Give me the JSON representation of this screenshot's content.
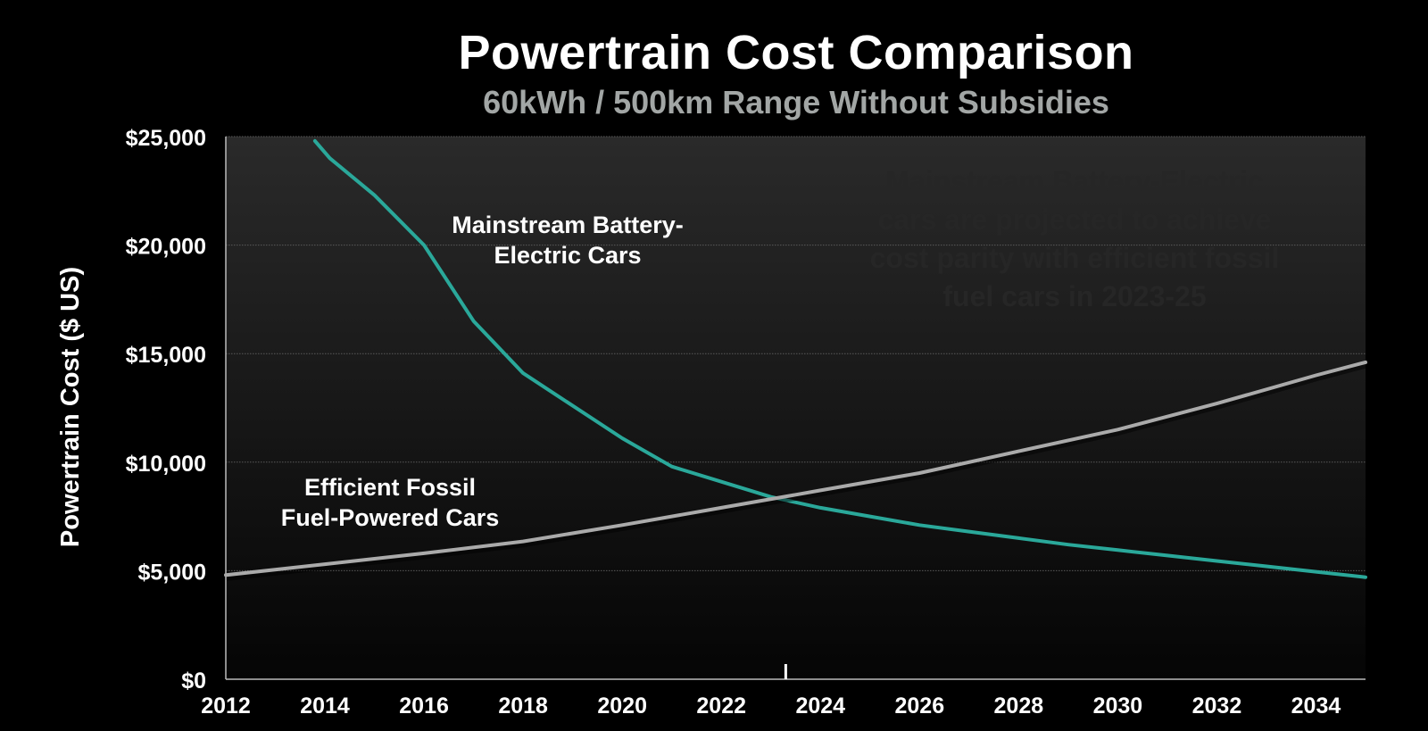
{
  "chart_data": {
    "type": "line",
    "title": "Powertrain Cost Comparison",
    "subtitle": "60kWh / 500km Range Without Subsidies",
    "xlabel": "",
    "ylabel": "Powertrain Cost ($ US)",
    "xlim": [
      2012,
      2035
    ],
    "ylim": [
      0,
      25000
    ],
    "x_ticks": [
      "2012",
      "2014",
      "2016",
      "2018",
      "2020",
      "2022",
      "2024",
      "2026",
      "2028",
      "2030",
      "2032",
      "2034"
    ],
    "y_ticks": [
      "$0",
      "$5,000",
      "$10,000",
      "$15,000",
      "$20,000",
      "$25,000"
    ],
    "grid": true,
    "marker_year": 2023.3,
    "series": [
      {
        "name": "Mainstream Battery-Electric Cars",
        "label_lines": [
          "Mainstream Battery-",
          "Electric Cars"
        ],
        "color": "#2aa89a",
        "points": [
          [
            2013.8,
            24800
          ],
          [
            2014.1,
            24000
          ],
          [
            2015.0,
            22300
          ],
          [
            2016.0,
            20000
          ],
          [
            2017.0,
            16500
          ],
          [
            2018.0,
            14100
          ],
          [
            2019.0,
            12600
          ],
          [
            2020.0,
            11100
          ],
          [
            2021.0,
            9800
          ],
          [
            2022.0,
            9100
          ],
          [
            2023.0,
            8400
          ],
          [
            2024.0,
            7900
          ],
          [
            2025.0,
            7500
          ],
          [
            2026.0,
            7100
          ],
          [
            2027.0,
            6800
          ],
          [
            2028.0,
            6500
          ],
          [
            2029.0,
            6200
          ],
          [
            2030.0,
            5950
          ],
          [
            2031.0,
            5700
          ],
          [
            2032.0,
            5450
          ],
          [
            2033.0,
            5200
          ],
          [
            2034.0,
            4950
          ],
          [
            2035.0,
            4700
          ]
        ]
      },
      {
        "name": "Efficient Fossil Fuel-Powered Cars",
        "label_lines": [
          "Efficient Fossil",
          "Fuel-Powered Cars"
        ],
        "color": "#aaaaaa",
        "points": [
          [
            2012.0,
            4800
          ],
          [
            2014.0,
            5300
          ],
          [
            2016.0,
            5800
          ],
          [
            2018.0,
            6350
          ],
          [
            2020.0,
            7100
          ],
          [
            2022.0,
            7900
          ],
          [
            2024.0,
            8700
          ],
          [
            2026.0,
            9500
          ],
          [
            2028.0,
            10500
          ],
          [
            2030.0,
            11500
          ],
          [
            2032.0,
            12700
          ],
          [
            2034.0,
            14000
          ],
          [
            2035.0,
            14600
          ]
        ]
      }
    ]
  },
  "annotation_faint": [
    "Mainstream Battery-Electric",
    "cars are projected to achieve",
    "cost parity with efficient fossil",
    "fuel cars in 2023-25"
  ]
}
